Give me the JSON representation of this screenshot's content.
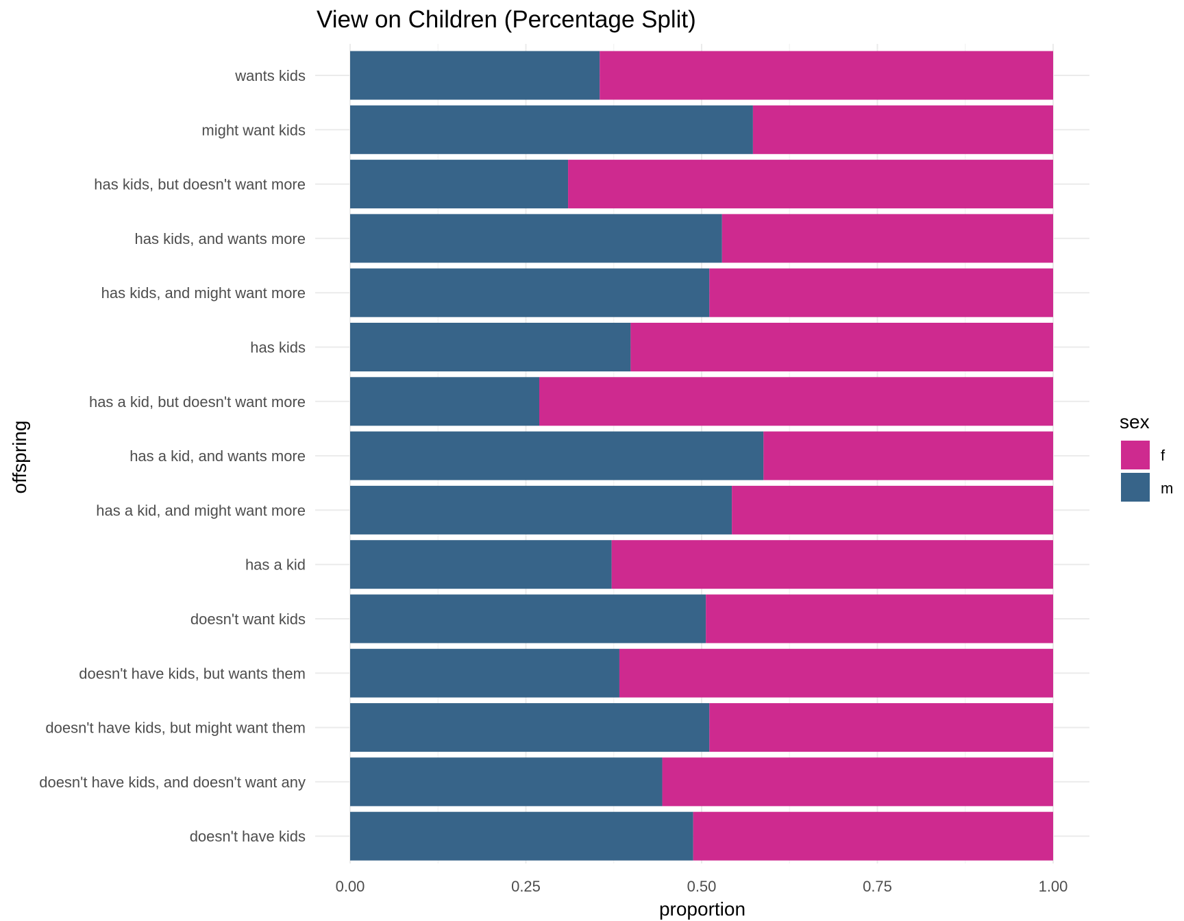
{
  "chart_data": {
    "type": "bar",
    "orientation": "horizontal",
    "stacked": "percent",
    "title": "View on Children (Percentage Split)",
    "xlabel": "proportion",
    "ylabel": "offspring",
    "xlim": [
      0,
      1
    ],
    "x_ticks": [
      "0.00",
      "0.25",
      "0.50",
      "0.75",
      "1.00"
    ],
    "grid": true,
    "legend": {
      "title": "sex",
      "position": "right"
    },
    "categories": [
      "wants kids",
      "might want kids",
      "has kids, but doesn't want more",
      "has kids, and wants more",
      "has kids, and might want more",
      "has kids",
      "has a kid, but doesn't want more",
      "has a kid, and wants more",
      "has a kid, and might want more",
      "has a kid",
      "doesn't want kids",
      "doesn't have kids, but wants them",
      "doesn't have kids, but might want them",
      "doesn't have kids, and doesn't want any",
      "doesn't have kids"
    ],
    "series": [
      {
        "name": "f",
        "color": "#CE2A8F",
        "values": [
          0.645,
          0.427,
          0.69,
          0.471,
          0.489,
          0.601,
          0.731,
          0.412,
          0.457,
          0.628,
          0.494,
          0.617,
          0.489,
          0.556,
          0.512
        ]
      },
      {
        "name": "m",
        "color": "#376489",
        "values": [
          0.355,
          0.573,
          0.31,
          0.529,
          0.511,
          0.399,
          0.269,
          0.588,
          0.543,
          0.372,
          0.506,
          0.383,
          0.511,
          0.444,
          0.488
        ]
      }
    ]
  }
}
